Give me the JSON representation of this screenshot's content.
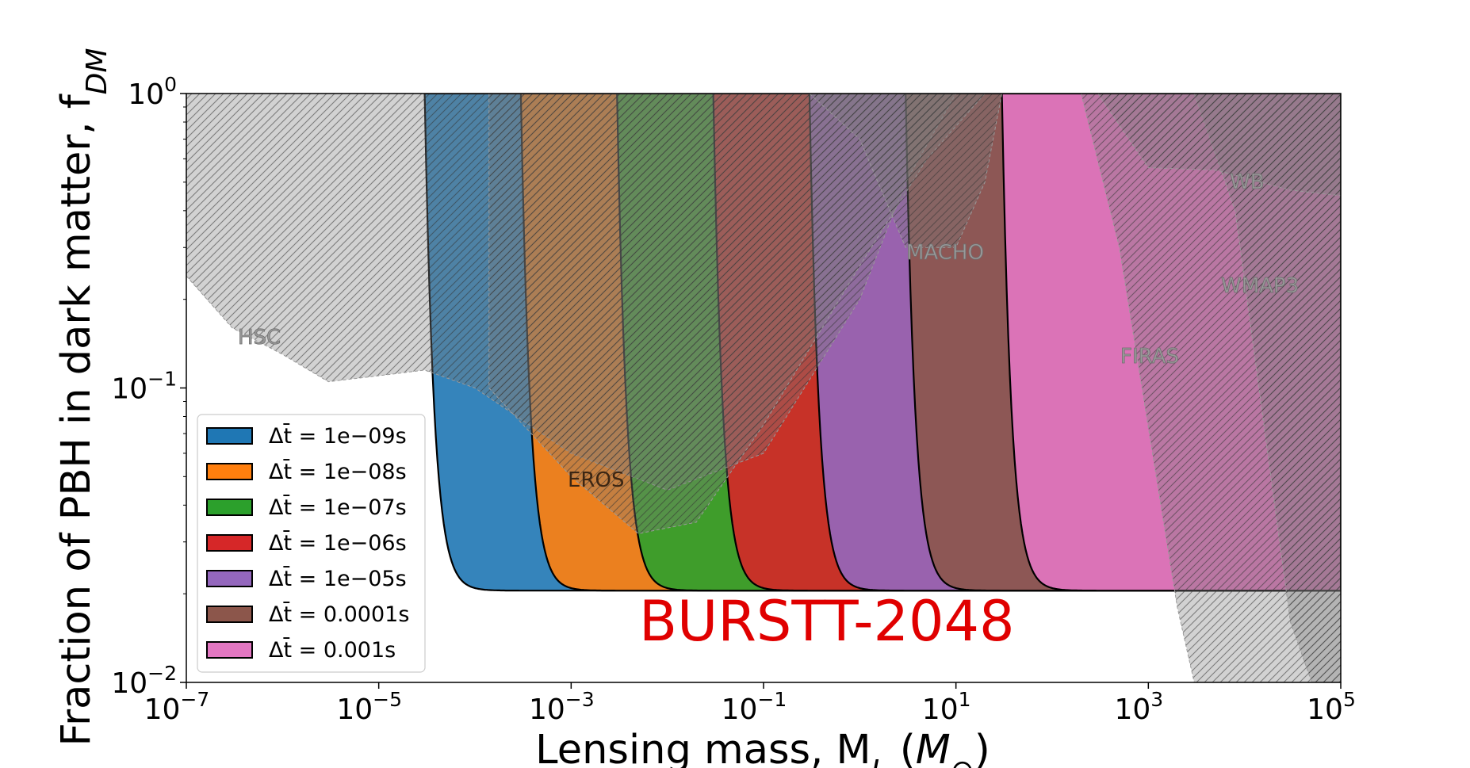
{
  "chart_data": {
    "type": "area",
    "xscale": "log",
    "yscale": "log",
    "xlim": [
      1e-07,
      100000.0
    ],
    "ylim": [
      0.01,
      1
    ],
    "xlabel": "Lensing mass, M_L (M_⊙)",
    "ylabel": "Fraction of PBH in dark matter, f_DM",
    "x_ticks": [
      {
        "base": "10",
        "exp": "−7",
        "value": 1e-07
      },
      {
        "base": "10",
        "exp": "−5",
        "value": 1e-05
      },
      {
        "base": "10",
        "exp": "−3",
        "value": 0.001
      },
      {
        "base": "10",
        "exp": "−1",
        "value": 0.1
      },
      {
        "base": "10",
        "exp": "1",
        "value": 10
      },
      {
        "base": "10",
        "exp": "3",
        "value": 1000
      },
      {
        "base": "10",
        "exp": "5",
        "value": 100000
      }
    ],
    "y_ticks": [
      {
        "base": "10",
        "exp": "0",
        "value": 1
      },
      {
        "base": "10",
        "exp": "−1",
        "value": 0.1
      },
      {
        "base": "10",
        "exp": "−2",
        "value": 0.01
      }
    ],
    "floor_fdm": 0.0205,
    "series": [
      {
        "name": "Δt̄ = 1e−09s",
        "dt": "1e-09",
        "color": "#1f77b4",
        "m_min": 3e-05
      },
      {
        "name": "Δt̄ = 1e−08s",
        "dt": "1e-08",
        "color": "#ff7f0e",
        "m_min": 0.0003
      },
      {
        "name": "Δt̄ = 1e−07s",
        "dt": "1e-07",
        "color": "#2ca02c",
        "m_min": 0.003
      },
      {
        "name": "Δt̄ = 1e−06s",
        "dt": "1e-06",
        "color": "#d62728",
        "m_min": 0.03
      },
      {
        "name": "Δt̄ = 1e−05s",
        "dt": "1e-05",
        "color": "#9467bd",
        "m_min": 0.3
      },
      {
        "name": "Δt̄ = 0.0001s",
        "dt": "0.0001",
        "color": "#8c564b",
        "m_min": 3
      },
      {
        "name": "Δt̄ = 0.001s",
        "dt": "0.001",
        "color": "#e377c2",
        "m_min": 30
      }
    ],
    "constraints": [
      {
        "name": "HSC",
        "points": [
          [
            1e-07,
            0.24
          ],
          [
            3e-07,
            0.16
          ],
          [
            1e-06,
            0.13
          ],
          [
            3e-06,
            0.105
          ],
          [
            1e-05,
            0.11
          ],
          [
            3e-05,
            0.115
          ],
          [
            0.0001,
            0.1
          ],
          [
            0.001,
            0.06
          ],
          [
            0.01,
            0.045
          ],
          [
            0.1,
            0.06
          ],
          [
            1,
            0.2
          ],
          [
            3,
            0.5
          ],
          [
            10,
            1
          ]
        ]
      },
      {
        "name": "EROS",
        "points": [
          [
            0.00014,
            0.1
          ],
          [
            0.001,
            0.05
          ],
          [
            0.005,
            0.032
          ],
          [
            0.02,
            0.035
          ],
          [
            0.1,
            0.075
          ],
          [
            1,
            0.26
          ],
          [
            5,
            0.6
          ],
          [
            20,
            1
          ]
        ]
      },
      {
        "name": "MACHO",
        "points": [
          [
            0.3,
            1
          ],
          [
            1,
            0.7
          ],
          [
            3,
            0.3
          ],
          [
            10,
            0.3
          ],
          [
            20,
            0.5
          ],
          [
            30,
            1
          ]
        ]
      },
      {
        "name": "FIRAS",
        "points": [
          [
            200,
            1
          ],
          [
            500,
            0.3
          ],
          [
            2000,
            0.018
          ],
          [
            3000,
            0.01
          ]
        ]
      },
      {
        "name": "WMAP3",
        "points": [
          [
            3000,
            1
          ],
          [
            8000,
            0.4
          ],
          [
            30000,
            0.016
          ],
          [
            50000,
            0.01
          ]
        ]
      },
      {
        "name": "WB",
        "points": [
          [
            300,
            1
          ],
          [
            1000,
            0.56
          ],
          [
            5000,
            0.55
          ],
          [
            30000,
            0.47
          ],
          [
            100000,
            0.45
          ]
        ]
      }
    ],
    "legend_position": "lower-left",
    "annotation": "BURSTT-2048",
    "labels": {
      "hsc": "HSC",
      "eros": "EROS",
      "macho": "MACHO",
      "firas": "FIRAS",
      "wmap3": "WMAP3",
      "wb": "WB"
    }
  },
  "axes": {
    "y_title": "Fraction of PBH in dark matter, f",
    "y_title_sub": "DM",
    "x_title": "Lensing mass, M",
    "x_title_sub": "L",
    "x_title_unit_open": " (",
    "x_title_unit_M": "M",
    "x_title_unit_sub": "⊙",
    "x_title_unit_close": ")"
  }
}
